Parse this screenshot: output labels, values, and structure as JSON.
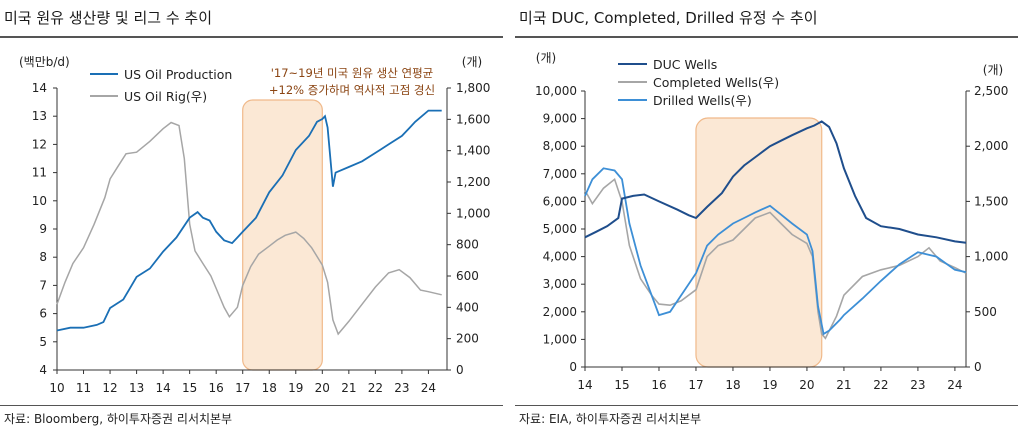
{
  "colors": {
    "oil_production": "#1a6fb5",
    "rig_count": "#a6a6a6",
    "duc_wells": "#1f4e8c",
    "completed_wells": "#a6a6a6",
    "drilled_wells": "#3d8fd6",
    "highlight_fill": "#fbe8d5",
    "highlight_stroke": "#f0b98a"
  },
  "left_panel": {
    "title": "미국 원유 생산량 및 리그 수 추이",
    "source": "자료: Bloomberg, 하이투자증권 리서치본부",
    "left_unit": "(백만b/d)",
    "right_unit": "(개)",
    "annotation_line1": "'17~19년 미국 원유 생산 연평균",
    "annotation_line2": "+12% 증가하며 역사적 고점 경신"
  },
  "right_panel": {
    "title": "미국 DUC, Completed, Drilled 유정 수 추이",
    "source": "자료: EIA, 하이투자증권 리서치본부",
    "left_unit": "(개)",
    "right_unit": "(개)"
  },
  "chart_data": [
    {
      "type": "line",
      "title": "미국 원유 생산량 및 리그 수 추이",
      "x_tick_labels": [
        "10",
        "11",
        "12",
        "13",
        "14",
        "15",
        "16",
        "17",
        "18",
        "19",
        "20",
        "21",
        "22",
        "23",
        "24"
      ],
      "x_range": [
        2010,
        2024.7
      ],
      "y_left": {
        "label": "(백만b/d)",
        "range": [
          4,
          14
        ],
        "ticks": [
          4,
          5,
          6,
          7,
          8,
          9,
          10,
          11,
          12,
          13,
          14
        ]
      },
      "y_right": {
        "label": "(개)",
        "range": [
          0,
          1800
        ],
        "ticks": [
          "0",
          "200",
          "400",
          "600",
          "800",
          "1,000",
          "1,200",
          "1,400",
          "1,600",
          "1,800"
        ]
      },
      "highlight": {
        "x_from": 2017,
        "x_to": 2020,
        "label": [
          "'17~19년 미국 원유 생산 연평균",
          "+12% 증가하며 역사적 고점 경신"
        ]
      },
      "legend_position": "top-left",
      "series": [
        {
          "name": "US Oil Production",
          "axis": "left",
          "x": [
            2010,
            2010.5,
            2011,
            2011.5,
            2011.75,
            2012,
            2012.5,
            2013,
            2013.5,
            2014,
            2014.5,
            2015,
            2015.3,
            2015.5,
            2015.75,
            2016,
            2016.3,
            2016.6,
            2016.8,
            2017,
            2017.5,
            2018,
            2018.5,
            2019,
            2019.5,
            2019.8,
            2020,
            2020.1,
            2020.2,
            2020.4,
            2020.5,
            2021,
            2021.5,
            2022,
            2022.5,
            2023,
            2023.3,
            2023.5,
            2024,
            2024.5
          ],
          "y": [
            5.4,
            5.5,
            5.5,
            5.6,
            5.7,
            6.2,
            6.5,
            7.3,
            7.6,
            8.2,
            8.7,
            9.4,
            9.6,
            9.4,
            9.3,
            8.9,
            8.6,
            8.5,
            8.7,
            8.9,
            9.4,
            10.3,
            10.9,
            11.8,
            12.3,
            12.8,
            12.9,
            13.0,
            12.6,
            10.5,
            11.0,
            11.2,
            11.4,
            11.7,
            12.0,
            12.3,
            12.6,
            12.8,
            13.2,
            13.2
          ]
        },
        {
          "name": "US Oil Rig(우)",
          "axis": "right",
          "x": [
            2010,
            2010.3,
            2010.6,
            2011,
            2011.4,
            2011.8,
            2012,
            2012.3,
            2012.6,
            2013,
            2013.5,
            2014,
            2014.3,
            2014.6,
            2014.8,
            2015,
            2015.2,
            2015.5,
            2015.8,
            2016,
            2016.3,
            2016.5,
            2016.8,
            2017,
            2017.3,
            2017.6,
            2018,
            2018.3,
            2018.6,
            2019,
            2019.3,
            2019.6,
            2020,
            2020.2,
            2020.4,
            2020.6,
            2021,
            2021.5,
            2022,
            2022.5,
            2022.9,
            2023.3,
            2023.7,
            2024,
            2024.5
          ],
          "y": [
            420,
            560,
            680,
            780,
            930,
            1100,
            1220,
            1300,
            1380,
            1390,
            1460,
            1540,
            1580,
            1560,
            1350,
            930,
            760,
            680,
            600,
            520,
            400,
            340,
            400,
            540,
            660,
            740,
            790,
            830,
            860,
            880,
            840,
            780,
            670,
            560,
            320,
            230,
            310,
            420,
            530,
            620,
            640,
            590,
            510,
            500,
            480
          ]
        }
      ]
    },
    {
      "type": "line",
      "title": "미국 DUC, Completed, Drilled 유정 수 추이",
      "x_tick_labels": [
        "14",
        "15",
        "16",
        "17",
        "18",
        "19",
        "20",
        "21",
        "22",
        "23",
        "24"
      ],
      "x_range": [
        2014,
        2024.3
      ],
      "y_left": {
        "label": "(개)",
        "range": [
          0,
          10000
        ],
        "ticks": [
          "0",
          "1,000",
          "2,000",
          "3,000",
          "4,000",
          "5,000",
          "6,000",
          "7,000",
          "8,000",
          "9,000",
          "10,000"
        ]
      },
      "y_right": {
        "label": "(개)",
        "range": [
          0,
          2500
        ],
        "ticks": [
          "0",
          "500",
          "1,000",
          "1,500",
          "2,000",
          "2,500"
        ]
      },
      "highlight": {
        "x_from": 2017,
        "x_to": 2020.4
      },
      "legend_position": "top-center",
      "series": [
        {
          "name": "DUC Wells",
          "axis": "left",
          "x": [
            2014,
            2014.3,
            2014.6,
            2014.9,
            2015,
            2015.3,
            2015.6,
            2016,
            2016.5,
            2016.8,
            2017,
            2017.3,
            2017.7,
            2018,
            2018.3,
            2018.7,
            2019,
            2019.3,
            2019.6,
            2020,
            2020.2,
            2020.4,
            2020.6,
            2020.8,
            2021,
            2021.3,
            2021.6,
            2022,
            2022.5,
            2023,
            2023.5,
            2024,
            2024.3
          ],
          "y": [
            4700,
            4900,
            5100,
            5400,
            6100,
            6200,
            6250,
            6000,
            5700,
            5500,
            5400,
            5800,
            6300,
            6900,
            7300,
            7700,
            8000,
            8200,
            8400,
            8650,
            8750,
            8900,
            8700,
            8100,
            7200,
            6200,
            5400,
            5100,
            5000,
            4800,
            4700,
            4550,
            4500
          ]
        },
        {
          "name": "Completed Wells(우)",
          "axis": "right",
          "x": [
            2014,
            2014.2,
            2014.5,
            2014.8,
            2015,
            2015.2,
            2015.5,
            2015.8,
            2016,
            2016.3,
            2016.6,
            2017,
            2017.3,
            2017.6,
            2018,
            2018.3,
            2018.6,
            2019,
            2019.3,
            2019.6,
            2020,
            2020.15,
            2020.3,
            2020.4,
            2020.5,
            2020.8,
            2021,
            2021.5,
            2022,
            2022.5,
            2023,
            2023.3,
            2023.6,
            2024,
            2024.3
          ],
          "y": [
            1600,
            1480,
            1620,
            1700,
            1500,
            1100,
            800,
            650,
            570,
            560,
            600,
            700,
            1000,
            1100,
            1150,
            1250,
            1350,
            1400,
            1300,
            1200,
            1120,
            1000,
            500,
            300,
            260,
            460,
            650,
            820,
            880,
            920,
            1000,
            1080,
            960,
            900,
            850
          ]
        },
        {
          "name": "Drilled Wells(우)",
          "axis": "right",
          "x": [
            2014,
            2014.2,
            2014.5,
            2014.8,
            2015,
            2015.2,
            2015.5,
            2015.8,
            2016,
            2016.3,
            2016.6,
            2017,
            2017.3,
            2017.6,
            2018,
            2018.3,
            2018.6,
            2019,
            2019.3,
            2019.6,
            2020,
            2020.15,
            2020.3,
            2020.45,
            2020.6,
            2020.9,
            2021,
            2021.5,
            2022,
            2022.5,
            2023,
            2023.5,
            2024,
            2024.3
          ],
          "y": [
            1550,
            1700,
            1800,
            1780,
            1700,
            1300,
            920,
            650,
            470,
            500,
            650,
            850,
            1100,
            1200,
            1300,
            1350,
            1400,
            1460,
            1380,
            1300,
            1200,
            1050,
            550,
            300,
            330,
            430,
            470,
            620,
            780,
            930,
            1040,
            1000,
            880,
            860
          ]
        }
      ]
    }
  ]
}
